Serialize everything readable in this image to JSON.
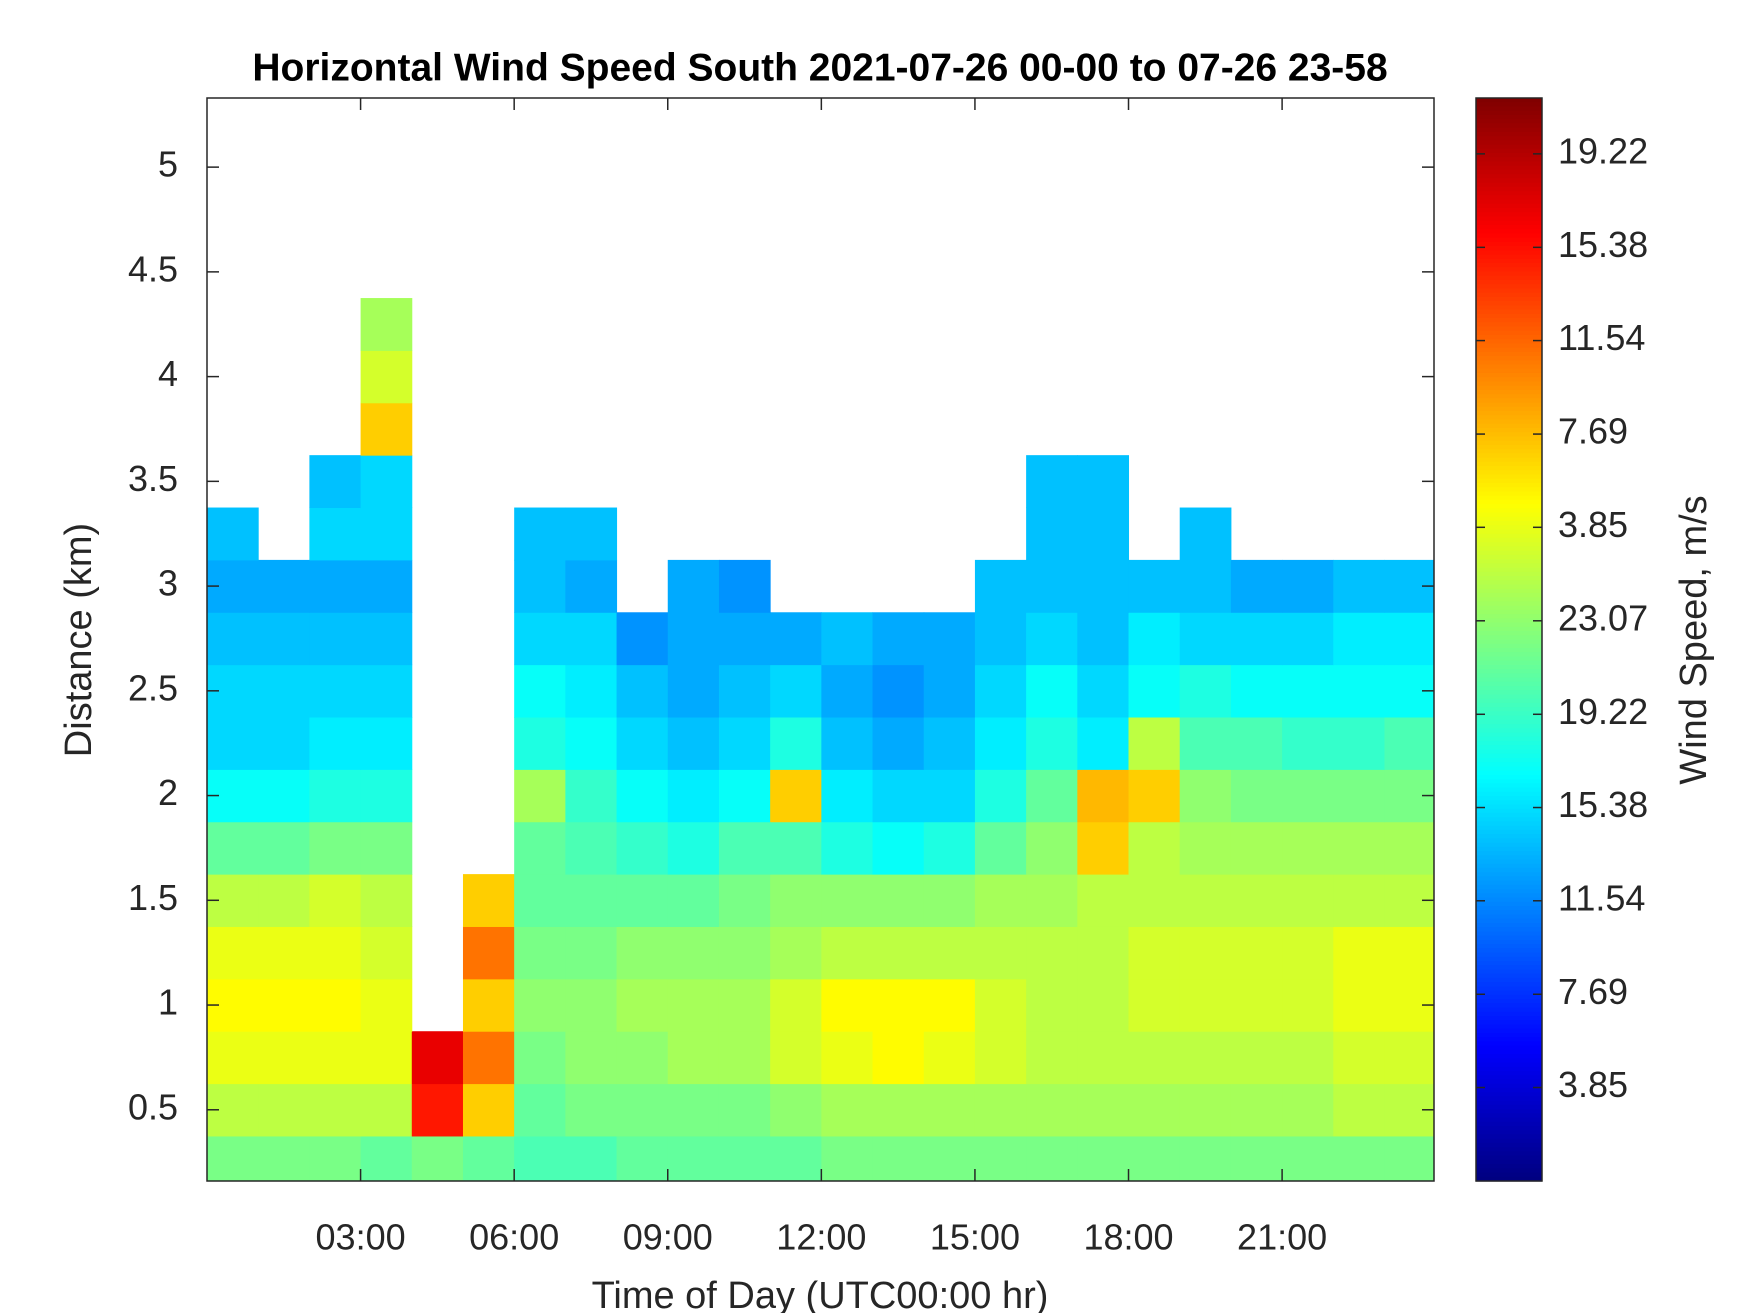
{
  "chart_data": {
    "type": "heatmap",
    "title": "Horizontal Wind Speed South 2021-07-26 00-00 to 07-26 23-58",
    "x_label": "Time of Day (UTC00:00 hr)",
    "y_label": "Distance (km)",
    "colorbar_label": "Wind Speed, m/s",
    "colormap": "jet",
    "xlim": [
      0,
      23.967
    ],
    "xticks": [
      {
        "value": 3,
        "label": "03:00"
      },
      {
        "value": 6,
        "label": "06:00"
      },
      {
        "value": 9,
        "label": "09:00"
      },
      {
        "value": 12,
        "label": "12:00"
      },
      {
        "value": 15,
        "label": "15:00"
      },
      {
        "value": 18,
        "label": "18:00"
      },
      {
        "value": 21,
        "label": "21:00"
      }
    ],
    "ylim": [
      0.16,
      5.33
    ],
    "yticks": [
      0.5,
      1,
      1.5,
      2,
      2.5,
      3,
      3.5,
      4,
      4.5,
      5
    ],
    "zlim": [
      0,
      44.6
    ],
    "zticks": [
      3.85,
      7.69,
      11.54,
      15.38,
      19.22,
      23.07,
      {
        "value": 26.92,
        "label": "3.85"
      },
      {
        "value": 30.76,
        "label": "7.69"
      },
      {
        "value": 34.61,
        "label": "11.54"
      },
      {
        "value": 38.45,
        "label": "15.38"
      },
      {
        "value": 42.3,
        "label": "19.22"
      }
    ],
    "x": [
      0.5,
      1.5,
      2.5,
      3.5,
      4.5,
      5.5,
      6.5,
      7.5,
      8.5,
      9.5,
      10.5,
      11.5,
      12.5,
      13.5,
      14.5,
      15.5,
      16.5,
      17.5,
      18.5,
      19.5,
      20.5,
      21.5,
      22.5,
      23.5
    ],
    "y": [
      0.25,
      0.5,
      0.75,
      1,
      1.25,
      1.5,
      1.75,
      2,
      2.25,
      2.5,
      2.75,
      3,
      3.25,
      3.5,
      3.75,
      4,
      4.25
    ],
    "values": [
      [
        22,
        22,
        22,
        21,
        22,
        21,
        20,
        20,
        21,
        21,
        21,
        21,
        22,
        22,
        22,
        22,
        22,
        22,
        22,
        22,
        22,
        22,
        22,
        22
      ],
      [
        25,
        25,
        25,
        25,
        38,
        30,
        21,
        22,
        22,
        22,
        22,
        23,
        24,
        24,
        24,
        24,
        24,
        24,
        24,
        24,
        24,
        24,
        25,
        25
      ],
      [
        27,
        27,
        27,
        27,
        40,
        34,
        22,
        23,
        23,
        24,
        24,
        26,
        27,
        28,
        27,
        26,
        25,
        25,
        25,
        25,
        25,
        25,
        26,
        26
      ],
      [
        28,
        28,
        28,
        27,
        null,
        30,
        23,
        23,
        24,
        24,
        24,
        26,
        28,
        28,
        28,
        26,
        25,
        25,
        26,
        26,
        26,
        26,
        27,
        27
      ],
      [
        27,
        27,
        27,
        26,
        null,
        34,
        22,
        22,
        23,
        23,
        23,
        24,
        25,
        25,
        25,
        25,
        25,
        25,
        26,
        26,
        26,
        26,
        27,
        27
      ],
      [
        25,
        25,
        26,
        25,
        null,
        30,
        21,
        21,
        21,
        21,
        22,
        23,
        23,
        23,
        23,
        24,
        24,
        25,
        25,
        25,
        25,
        25,
        25,
        25
      ],
      [
        21,
        21,
        22,
        22,
        null,
        null,
        21,
        20,
        19,
        18,
        20,
        20,
        18,
        17,
        18,
        21,
        23,
        30,
        25,
        24,
        24,
        24,
        24,
        24
      ],
      [
        17,
        17,
        18,
        18,
        null,
        null,
        24,
        19,
        17,
        16,
        17,
        30,
        16,
        15,
        15,
        18,
        21,
        31,
        30,
        23,
        22,
        22,
        22,
        22
      ],
      [
        15,
        15,
        16,
        16,
        null,
        null,
        18,
        17,
        15,
        14,
        15,
        18,
        14,
        13,
        14,
        16,
        18,
        16,
        25,
        20,
        20,
        19,
        19,
        20
      ],
      [
        15,
        15,
        15,
        15,
        null,
        null,
        17,
        16,
        14,
        13,
        14,
        15,
        13,
        12,
        13,
        15,
        17,
        15,
        17,
        18,
        17,
        17,
        17,
        17
      ],
      [
        14,
        14,
        14,
        14,
        null,
        null,
        15,
        15,
        12,
        13,
        13,
        13,
        14,
        13,
        13,
        14,
        15,
        14,
        16,
        15,
        15,
        15,
        16,
        16
      ],
      [
        13,
        13,
        13,
        13,
        null,
        null,
        14,
        13,
        null,
        13,
        12,
        null,
        null,
        null,
        null,
        14,
        14,
        14,
        14,
        14,
        13,
        13,
        14,
        14
      ],
      [
        14,
        null,
        15,
        15,
        null,
        null,
        14,
        14,
        null,
        null,
        null,
        null,
        null,
        null,
        null,
        null,
        14,
        14,
        null,
        14,
        null,
        null,
        null,
        null
      ],
      [
        null,
        null,
        14,
        15,
        null,
        null,
        null,
        null,
        null,
        null,
        null,
        null,
        null,
        null,
        null,
        null,
        14,
        14,
        null,
        null,
        null,
        null,
        null,
        null
      ],
      [
        null,
        null,
        null,
        30,
        null,
        null,
        null,
        null,
        null,
        null,
        null,
        null,
        null,
        null,
        null,
        null,
        null,
        null,
        null,
        null,
        null,
        null,
        null,
        null
      ],
      [
        null,
        null,
        null,
        26,
        null,
        null,
        null,
        null,
        null,
        null,
        null,
        null,
        null,
        null,
        null,
        null,
        null,
        null,
        null,
        null,
        null,
        null,
        null,
        null
      ],
      [
        null,
        null,
        null,
        24,
        null,
        null,
        null,
        null,
        null,
        null,
        null,
        null,
        null,
        null,
        null,
        null,
        null,
        null,
        null,
        null,
        null,
        null,
        null,
        null
      ]
    ]
  }
}
